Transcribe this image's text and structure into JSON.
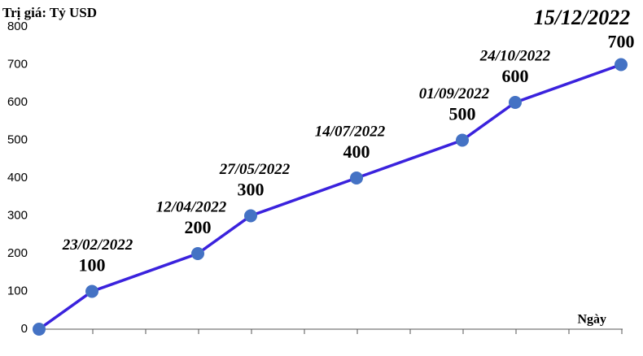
{
  "chart_data": {
    "type": "line",
    "y_axis_label": "Trị giá: Tỷ USD",
    "x_axis_label": "Ngày",
    "categories": [
      null,
      "23/02/2022",
      "12/04/2022",
      "27/05/2022",
      "14/07/2022",
      "01/09/2022",
      "24/10/2022",
      "15/12/2022"
    ],
    "series": [
      {
        "color": "#3a22dd",
        "marker_color": "#4472c4",
        "values": [
          0,
          100,
          200,
          300,
          400,
          500,
          600,
          700
        ]
      }
    ],
    "highlight_color": "#e8141b",
    "ylim": [
      0,
      800
    ],
    "yticks": [
      0,
      100,
      200,
      300,
      400,
      500,
      600,
      700,
      800
    ],
    "grid": false
  }
}
